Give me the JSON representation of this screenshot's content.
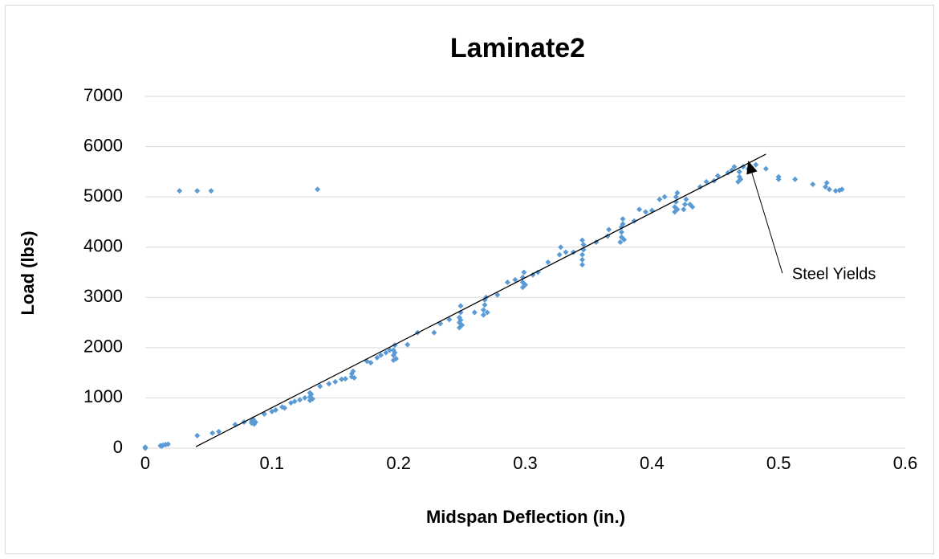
{
  "chart_data": {
    "type": "scatter",
    "title": "Laminate2",
    "xlabel": "Midspan Deflection (in.)",
    "ylabel": "Load (lbs)",
    "color": "#5b9bd5",
    "x": [
      0,
      0,
      0.012,
      0.014,
      0.016,
      0.018,
      0.013,
      0.027,
      0.041,
      0.052,
      0.136,
      0.041,
      0.053,
      0.058,
      0.071,
      0.078,
      0.084,
      0.084,
      0.085,
      0.086,
      0.087,
      0.094,
      0.1,
      0.103,
      0.108,
      0.11,
      0.115,
      0.118,
      0.122,
      0.126,
      0.13,
      0.13,
      0.131,
      0.132,
      0.13,
      0.138,
      0.145,
      0.15,
      0.155,
      0.158,
      0.163,
      0.163,
      0.164,
      0.165,
      0.175,
      0.178,
      0.183,
      0.186,
      0.19,
      0.193,
      0.196,
      0.196,
      0.196,
      0.197,
      0.198,
      0.197,
      0.207,
      0.215,
      0.228,
      0.233,
      0.24,
      0.248,
      0.248,
      0.248,
      0.249,
      0.249,
      0.25,
      0.249,
      0.26,
      0.267,
      0.267,
      0.268,
      0.268,
      0.269,
      0.27,
      0.278,
      0.286,
      0.292,
      0.298,
      0.298,
      0.298,
      0.299,
      0.3,
      0.306,
      0.31,
      0.318,
      0.327,
      0.328,
      0.332,
      0.338,
      0.345,
      0.345,
      0.345,
      0.346,
      0.346,
      0.345,
      0.356,
      0.365,
      0.366,
      0.375,
      0.376,
      0.376,
      0.376,
      0.377,
      0.377,
      0.378,
      0.386,
      0.39,
      0.395,
      0.4,
      0.406,
      0.41,
      0.418,
      0.418,
      0.419,
      0.419,
      0.42,
      0.42,
      0.425,
      0.426,
      0.427,
      0.43,
      0.432,
      0.438,
      0.443,
      0.449,
      0.452,
      0.46,
      0.463,
      0.465,
      0.468,
      0.469,
      0.469,
      0.47,
      0.472,
      0.476,
      0.482,
      0.49,
      0.5,
      0.5,
      0.513,
      0.527,
      0.537,
      0.538,
      0.54,
      0.545,
      0.55,
      0.548
    ],
    "values": [
      0,
      20,
      50,
      60,
      70,
      80,
      40,
      5120,
      5120,
      5120,
      5150,
      250,
      300,
      330,
      470,
      520,
      500,
      540,
      580,
      480,
      520,
      680,
      730,
      760,
      820,
      800,
      900,
      930,
      960,
      1000,
      950,
      1020,
      1070,
      980,
      1100,
      1230,
      1280,
      1320,
      1370,
      1380,
      1420,
      1480,
      1530,
      1400,
      1730,
      1700,
      1800,
      1850,
      1900,
      1950,
      1750,
      1850,
      1950,
      2050,
      1780,
      1900,
      2060,
      2300,
      2300,
      2480,
      2560,
      2400,
      2500,
      2600,
      2700,
      2830,
      2450,
      2550,
      2700,
      2650,
      2750,
      2850,
      2950,
      3000,
      2700,
      3050,
      3300,
      3350,
      3200,
      3300,
      3400,
      3500,
      3250,
      3450,
      3500,
      3700,
      3850,
      4000,
      3900,
      3900,
      3650,
      3750,
      3850,
      3950,
      4050,
      4140,
      4100,
      4220,
      4350,
      4100,
      4200,
      4300,
      4400,
      4460,
      4560,
      4150,
      4520,
      4750,
      4700,
      4730,
      4950,
      5000,
      4700,
      4800,
      4900,
      5000,
      5080,
      4750,
      4750,
      4850,
      4950,
      4850,
      4800,
      5200,
      5300,
      5320,
      5420,
      5480,
      5530,
      5600,
      5300,
      5400,
      5500,
      5350,
      5600,
      5560,
      5640,
      5560,
      5350,
      5400,
      5350,
      5250,
      5200,
      5280,
      5150,
      5120,
      5150,
      5130
    ],
    "trendline": {
      "x": [
        0.04,
        0.49
      ],
      "values": [
        30,
        5850
      ],
      "color": "#000000"
    },
    "annotation": {
      "text": "Steel Yields",
      "xy": [
        0.476,
        5720
      ],
      "xytext": [
        0.503,
        3480
      ]
    },
    "xlim": [
      0,
      0.6
    ],
    "xticks": [
      0,
      0.1,
      0.2,
      0.3,
      0.4,
      0.5,
      0.6
    ],
    "ylim": [
      0,
      7000
    ],
    "yticks": [
      0,
      1000,
      2000,
      3000,
      4000,
      5000,
      6000,
      7000
    ],
    "grid": true
  }
}
